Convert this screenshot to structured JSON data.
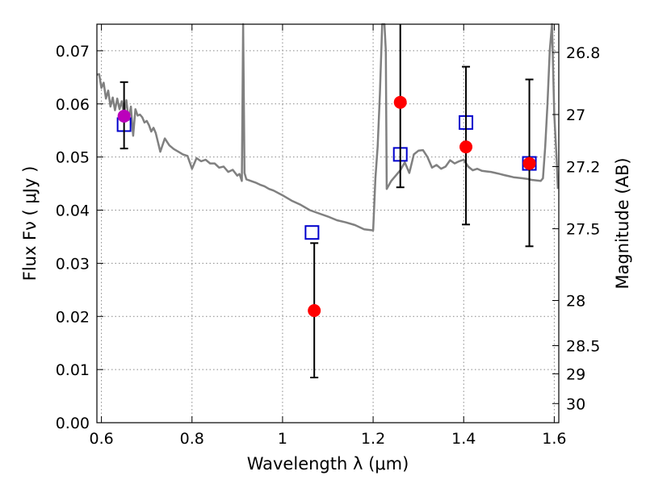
{
  "chart_data": {
    "type": "scatter",
    "xlabel": "Wavelength  λ (μm)",
    "ylabel": "Flux  Fν  ( μJy )",
    "y2label": "Magnitude (AB)",
    "xlim": [
      0.59,
      1.61
    ],
    "ylim": [
      0.0,
      0.075
    ],
    "x_ticks": [
      0.6,
      0.8,
      1.0,
      1.2,
      1.4,
      1.6
    ],
    "x_tick_labels": [
      "0.6",
      "0.8",
      "1",
      "1.2",
      "1.4",
      "1.6"
    ],
    "y_ticks": [
      0.0,
      0.01,
      0.02,
      0.03,
      0.04,
      0.05,
      0.06,
      0.07
    ],
    "y_tick_labels": [
      "0.00",
      "0.01",
      "0.02",
      "0.03",
      "0.04",
      "0.05",
      "0.06",
      "0.07"
    ],
    "y2_ticks": [
      {
        "label": "26.8",
        "flux": 0.0697
      },
      {
        "label": "27",
        "flux": 0.058
      },
      {
        "label": "27.2",
        "flux": 0.0482
      },
      {
        "label": "27.5",
        "flux": 0.0365
      },
      {
        "label": "28",
        "flux": 0.023
      },
      {
        "label": "28.5",
        "flux": 0.0145
      },
      {
        "label": "29",
        "flux": 0.0092
      },
      {
        "label": "30",
        "flux": 0.0036
      }
    ],
    "grid": true,
    "colors": {
      "model": "#808080",
      "predicted": "#0000cc",
      "observed": "#ff0000",
      "highlight": "#bb00bb",
      "errorbar": "#000000"
    },
    "series": [
      {
        "style": "line",
        "x": [
          0.59,
          0.595,
          0.6,
          0.605,
          0.61,
          0.615,
          0.62,
          0.625,
          0.63,
          0.635,
          0.64,
          0.645,
          0.65,
          0.655,
          0.66,
          0.665,
          0.67,
          0.675,
          0.68,
          0.685,
          0.69,
          0.695,
          0.7,
          0.705,
          0.71,
          0.715,
          0.72,
          0.73,
          0.74,
          0.75,
          0.76,
          0.77,
          0.78,
          0.79,
          0.8,
          0.81,
          0.82,
          0.83,
          0.84,
          0.85,
          0.86,
          0.87,
          0.88,
          0.89,
          0.9,
          0.905,
          0.91,
          0.913,
          0.916,
          0.92,
          0.93,
          0.94,
          0.95,
          0.96,
          0.97,
          0.98,
          1.0,
          1.02,
          1.04,
          1.06,
          1.08,
          1.1,
          1.12,
          1.14,
          1.16,
          1.18,
          1.2,
          1.202,
          1.205,
          1.21,
          1.215,
          1.22,
          1.225,
          1.228,
          1.23,
          1.24,
          1.25,
          1.26,
          1.27,
          1.28,
          1.29,
          1.3,
          1.31,
          1.32,
          1.33,
          1.34,
          1.35,
          1.36,
          1.37,
          1.38,
          1.39,
          1.4,
          1.41,
          1.42,
          1.43,
          1.44,
          1.45,
          1.46,
          1.47,
          1.48,
          1.49,
          1.5,
          1.51,
          1.52,
          1.53,
          1.54,
          1.55,
          1.56,
          1.57,
          1.575,
          1.58,
          1.585,
          1.59,
          1.595,
          1.6,
          1.605,
          1.608
        ],
        "y": [
          0.0655,
          0.0656,
          0.063,
          0.064,
          0.061,
          0.0625,
          0.0595,
          0.0612,
          0.0588,
          0.061,
          0.059,
          0.0605,
          0.058,
          0.0607,
          0.057,
          0.0595,
          0.054,
          0.059,
          0.0578,
          0.058,
          0.0575,
          0.0565,
          0.0568,
          0.056,
          0.0548,
          0.0555,
          0.0545,
          0.051,
          0.0535,
          0.0522,
          0.0515,
          0.051,
          0.0505,
          0.0502,
          0.0478,
          0.0498,
          0.0492,
          0.0495,
          0.0488,
          0.0488,
          0.048,
          0.0482,
          0.0472,
          0.0476,
          0.0465,
          0.0468,
          0.0455,
          0.076,
          0.047,
          0.0458,
          0.0455,
          0.0452,
          0.0448,
          0.0445,
          0.044,
          0.0437,
          0.0428,
          0.0418,
          0.041,
          0.04,
          0.0394,
          0.0388,
          0.0381,
          0.0377,
          0.0372,
          0.0364,
          0.0362,
          0.04,
          0.046,
          0.052,
          0.062,
          0.076,
          0.076,
          0.07,
          0.044,
          0.0455,
          0.0465,
          0.0475,
          0.049,
          0.047,
          0.0505,
          0.0512,
          0.0513,
          0.05,
          0.048,
          0.0485,
          0.0478,
          0.0482,
          0.0494,
          0.0488,
          0.0492,
          0.0495,
          0.0482,
          0.0475,
          0.0478,
          0.0474,
          0.0473,
          0.0472,
          0.047,
          0.0468,
          0.0466,
          0.0464,
          0.0462,
          0.0461,
          0.046,
          0.0459,
          0.0457,
          0.0456,
          0.0455,
          0.046,
          0.052,
          0.06,
          0.07,
          0.076,
          0.058,
          0.05,
          0.044
        ]
      },
      {
        "style": "open-square",
        "x": [
          0.65,
          1.065,
          1.26,
          1.405,
          1.545
        ],
        "y": [
          0.0561,
          0.0358,
          0.0505,
          0.0565,
          0.0488
        ]
      },
      {
        "style": "filled-circle",
        "x": [
          1.07,
          1.26,
          1.405,
          1.545
        ],
        "y": [
          0.0211,
          0.0603,
          0.0519,
          0.0488
        ],
        "yerr_low": [
          0.0085,
          0.0443,
          0.0373,
          0.0332
        ],
        "yerr_high": [
          0.0338,
          0.076,
          0.067,
          0.0646
        ]
      },
      {
        "style": "filled-circle-highlight",
        "x": [
          0.65
        ],
        "y": [
          0.0577
        ],
        "yerr_low": [
          0.0516
        ],
        "yerr_high": [
          0.0641
        ]
      }
    ]
  }
}
